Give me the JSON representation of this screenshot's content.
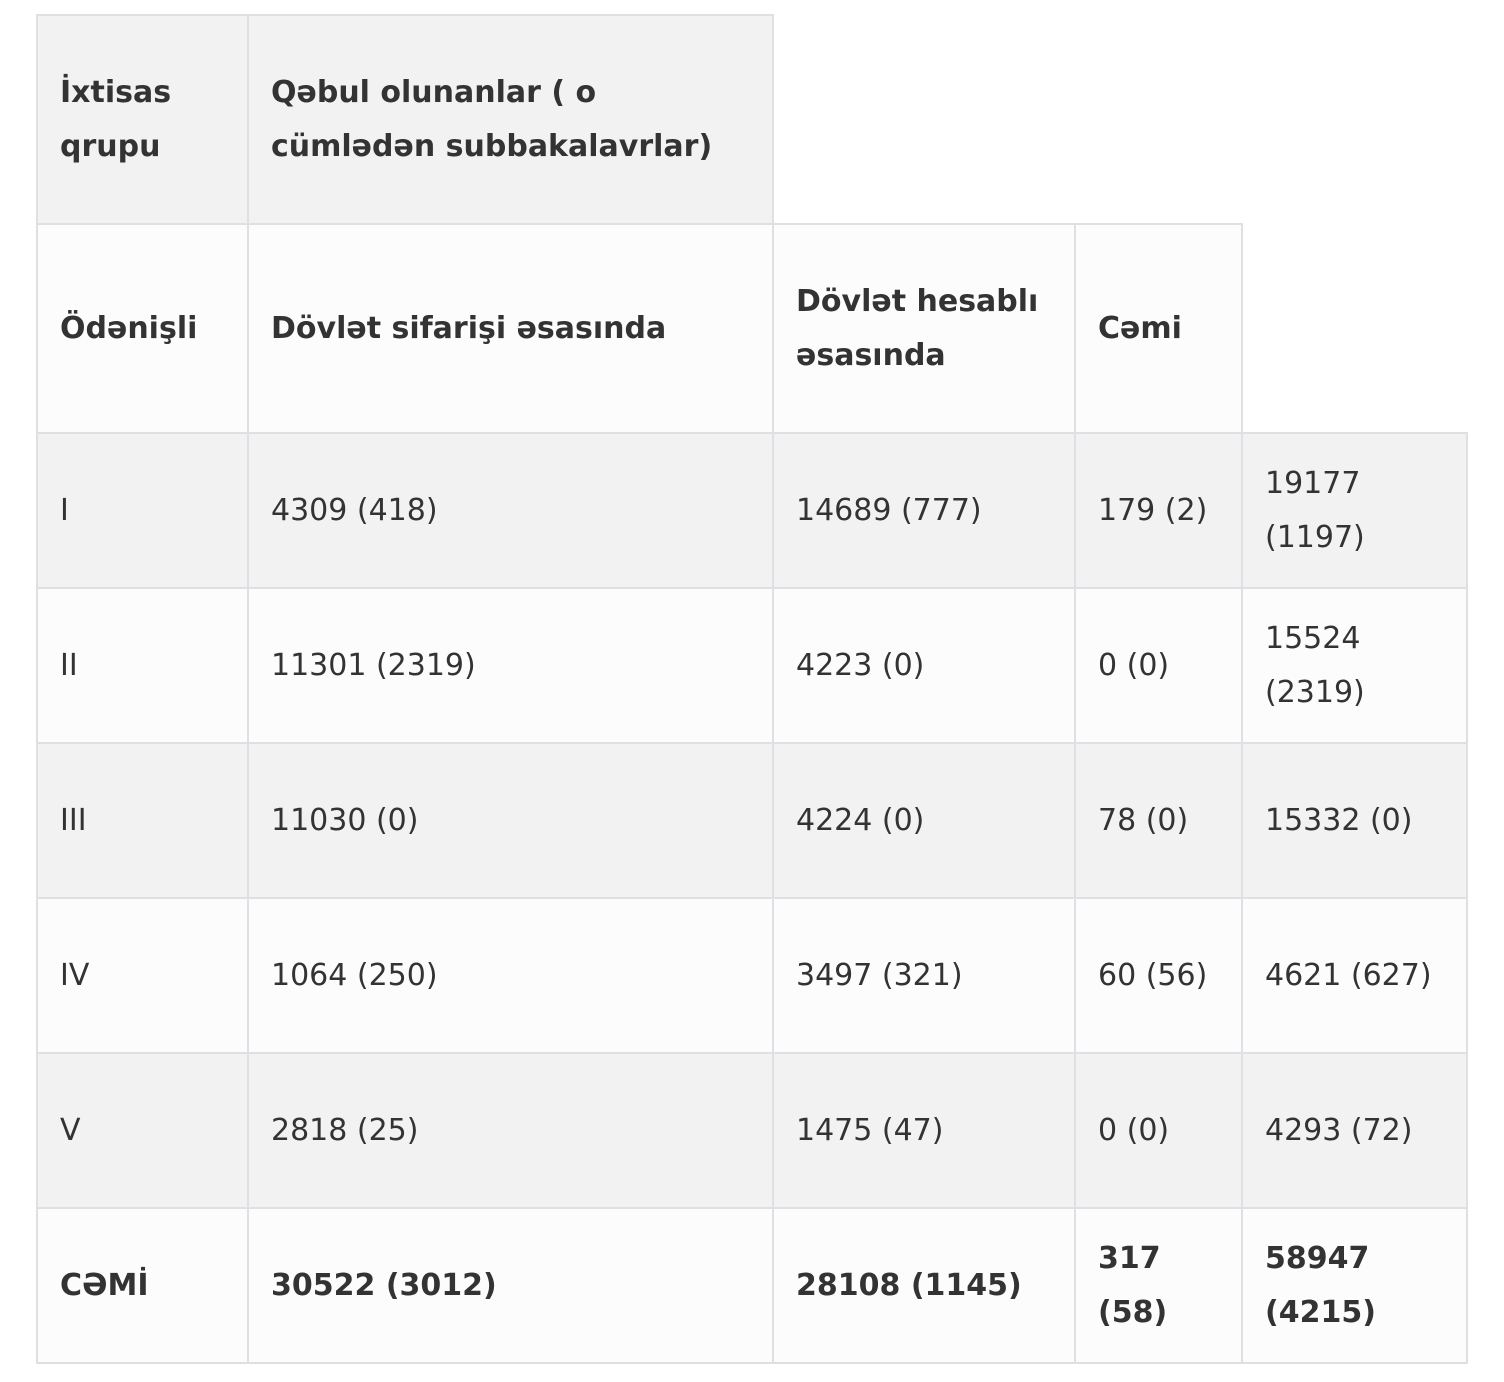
{
  "table": {
    "rows": [
      [
        "İxtisas qrupu",
        "Qəbul olunanlar ( o cümlədən subbakalavrlar)"
      ],
      [
        "Ödənişli",
        "Dövlət sifarişi əsasında",
        "Dövlət hesablı əsasında",
        "Cəmi"
      ],
      [
        "I",
        "4309 (418)",
        "14689 (777)",
        "179 (2)",
        "19177 (1197)"
      ],
      [
        "II",
        "11301 (2319)",
        "4223 (0)",
        "0 (0)",
        "15524 (2319)"
      ],
      [
        "III",
        "11030 (0)",
        "4224 (0)",
        "78 (0)",
        "15332 (0)"
      ],
      [
        "IV",
        "1064 (250)",
        "3497 (321)",
        "60 (56)",
        "4621 (627)"
      ],
      [
        "V",
        "2818 (25)",
        "1475 (47)",
        "0 (0)",
        "4293 (72)"
      ],
      [
        "CƏMİ",
        "30522 (3012)",
        "28108 (1145)",
        "317 (58)",
        "58947 (4215)"
      ]
    ]
  }
}
